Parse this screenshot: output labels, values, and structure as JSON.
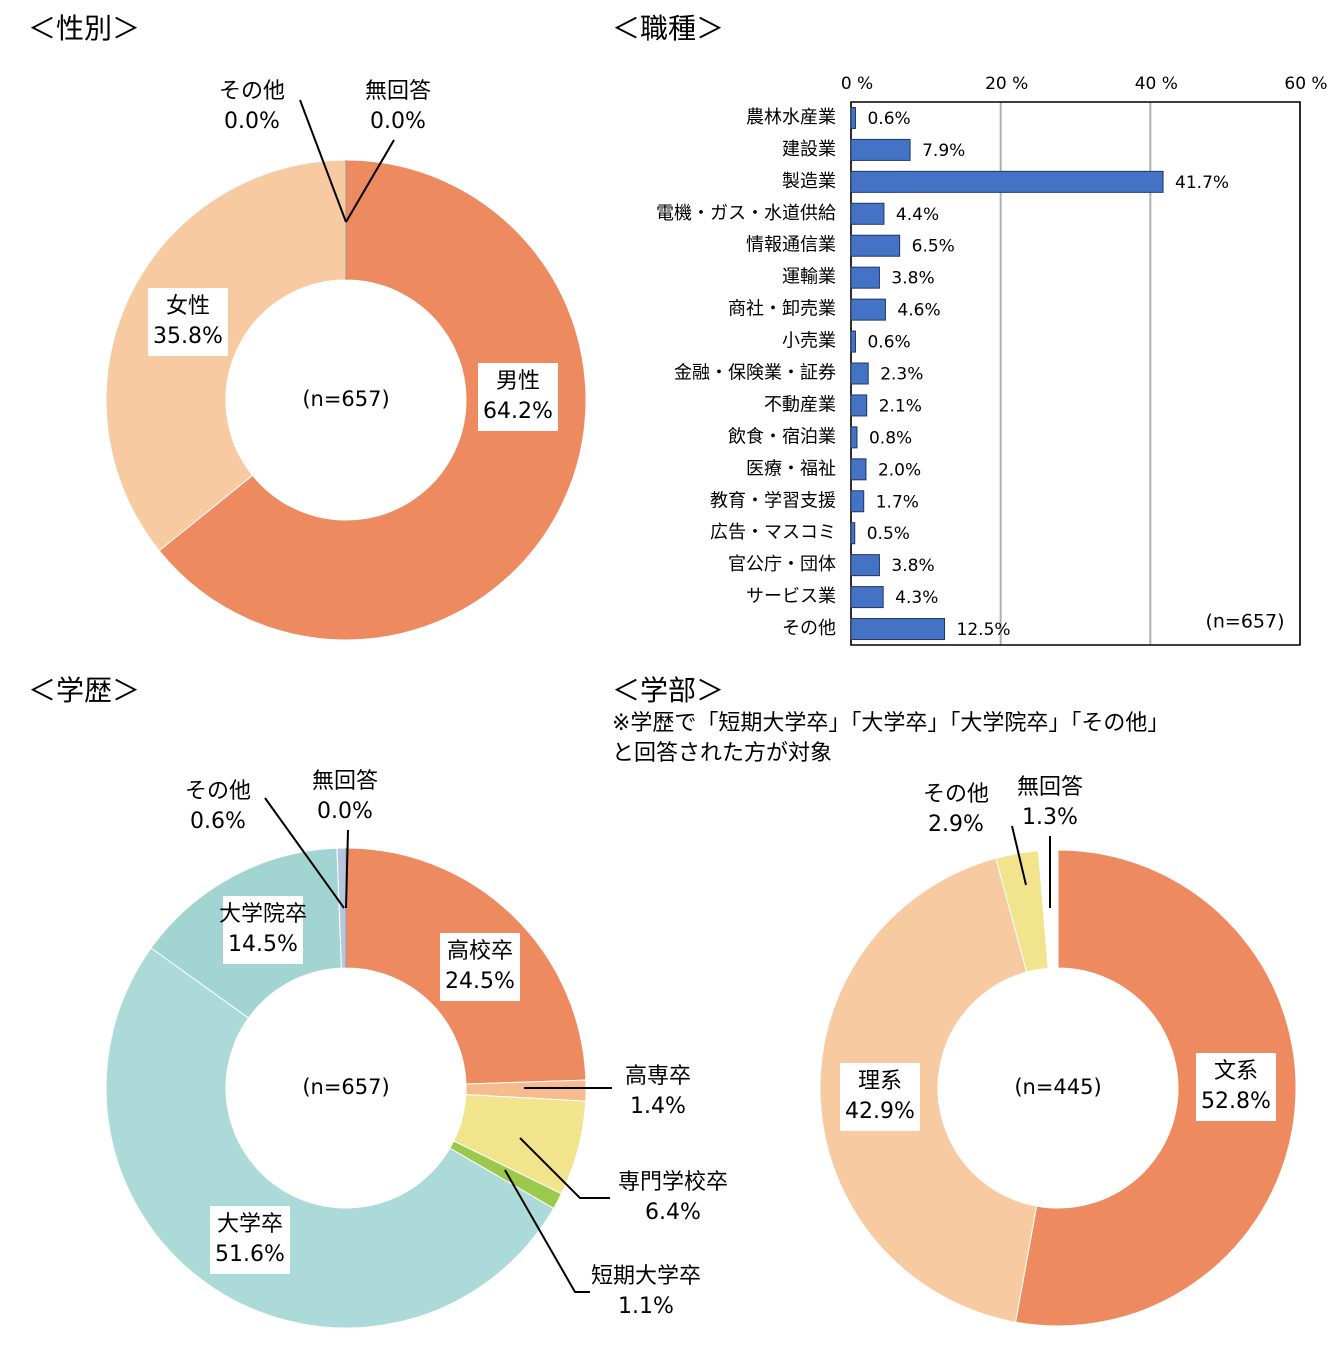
{
  "chart_data": [
    {
      "type": "donut",
      "title": "＜性別＞",
      "note": "(n=657)",
      "categories": [
        "男性",
        "女性",
        "その他",
        "無回答"
      ],
      "values": [
        64.2,
        35.8,
        0.0,
        0.0
      ],
      "value_labels": [
        "64.2%",
        "35.8%",
        "0.0%",
        "0.0%"
      ],
      "colors": [
        "#ee8a5f",
        "#f8caa2",
        "#bdbdbd",
        "#bdbdbd"
      ]
    },
    {
      "type": "hbar",
      "title": "＜職種＞",
      "note": "(n=657)",
      "categories": [
        "農林水産業",
        "建設業",
        "製造業",
        "電機・ガス・水道供給",
        "情報通信業",
        "運輸業",
        "商社・卸売業",
        "小売業",
        "金融・保険業・証券",
        "不動産業",
        "飲食・宿泊業",
        "医療・福祉",
        "教育・学習支援",
        "広告・マスコミ",
        "官公庁・団体",
        "サービス業",
        "その他"
      ],
      "values": [
        0.6,
        7.9,
        41.7,
        4.4,
        6.5,
        3.8,
        4.6,
        0.6,
        2.3,
        2.1,
        0.8,
        2.0,
        1.7,
        0.5,
        3.8,
        4.3,
        12.5
      ],
      "value_labels": [
        "0.6%",
        "7.9%",
        "41.7%",
        "4.4%",
        "6.5%",
        "3.8%",
        "4.6%",
        "0.6%",
        "2.3%",
        "2.1%",
        "0.8%",
        "2.0%",
        "1.7%",
        "0.5%",
        "3.8%",
        "4.3%",
        "12.5%"
      ],
      "color": "#4472c4",
      "grid": true,
      "xlim": [
        0,
        60
      ],
      "xticks": [
        {
          "value": 0,
          "label": "0 %"
        },
        {
          "value": 20,
          "label": "20 %"
        },
        {
          "value": 40,
          "label": "40 %"
        },
        {
          "value": 60,
          "label": "60 %"
        }
      ]
    },
    {
      "type": "donut",
      "title": "＜学歴＞",
      "note": "(n=657)",
      "categories": [
        "高校卒",
        "高専卒",
        "専門学校卒",
        "短期大学卒",
        "大学卒",
        "大学院卒",
        "その他",
        "無回答"
      ],
      "values": [
        24.5,
        1.4,
        6.4,
        1.1,
        51.6,
        14.5,
        0.6,
        0.0
      ],
      "value_labels": [
        "24.5%",
        "1.4%",
        "6.4%",
        "1.1%",
        "51.6%",
        "14.5%",
        "0.6%",
        "0.0%"
      ],
      "colors": [
        "#ee8a5f",
        "#f6bb8e",
        "#f1e48c",
        "#9cc84b",
        "#acdad8",
        "#a2d5d2",
        "#b7c6e0",
        "#ffffff"
      ]
    },
    {
      "type": "donut",
      "title": "＜学部＞",
      "subtitle": [
        "※学歴で「短期大学卒」「大学卒」「大学院卒」「その他」",
        "と回答された方が対象"
      ],
      "note": "(n=445)",
      "categories": [
        "文系",
        "理系",
        "その他",
        "無回答"
      ],
      "values": [
        52.8,
        42.9,
        2.9,
        1.3
      ],
      "value_labels": [
        "52.8%",
        "42.9%",
        "2.9%",
        "1.3%"
      ],
      "colors": [
        "#ee8a5f",
        "#f8caa2",
        "#f1e48c",
        "#ffffff"
      ]
    }
  ]
}
